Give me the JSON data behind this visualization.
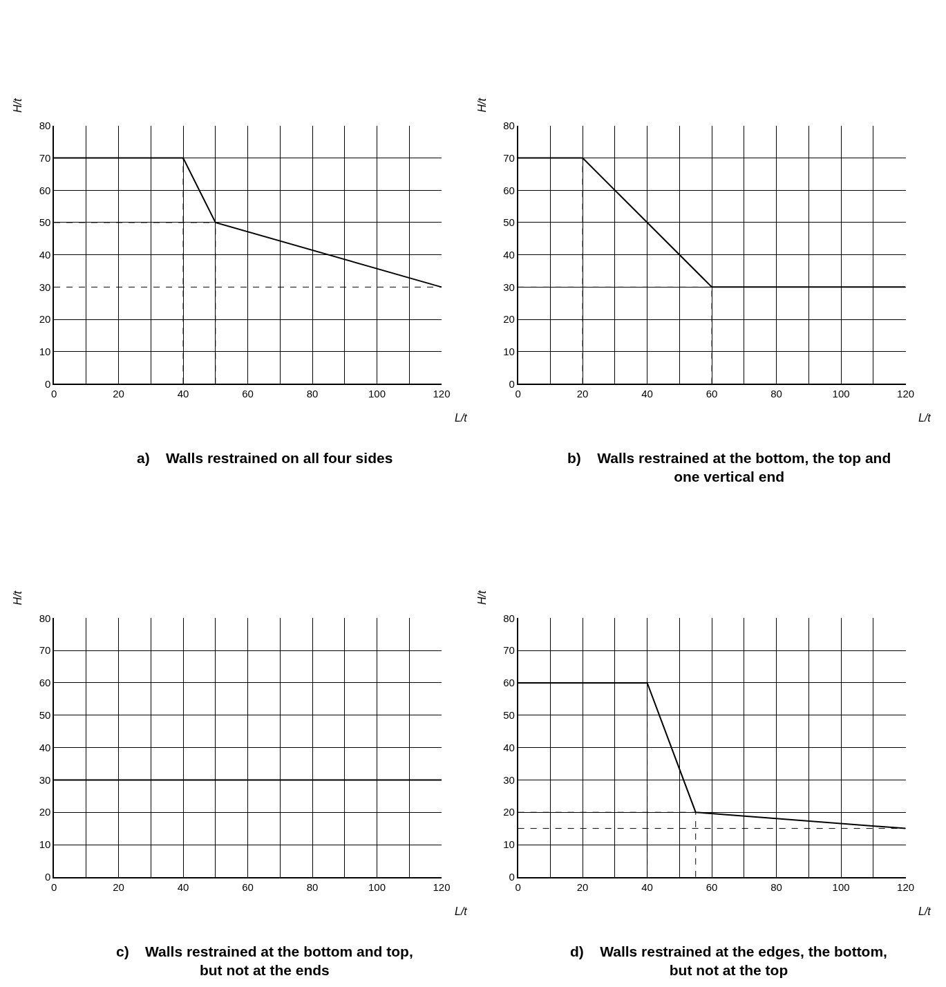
{
  "chart_data": [
    {
      "type": "line",
      "title": "a)    Walls restrained on all four sides",
      "ref_lines": [
        {
          "axis": "y",
          "value": 30,
          "color": "#000000",
          "line_style": "dashed"
        }
      ],
      "xlabel": "L/t",
      "ylabel": "H/t",
      "xlim": [
        0,
        120
      ],
      "ylim": [
        0,
        80
      ],
      "grid": true,
      "xticks": [
        0,
        {
          "value": 10,
          "label": null
        },
        20,
        {
          "value": 30,
          "label": null
        },
        40,
        {
          "value": 50,
          "label": null
        },
        60,
        {
          "value": 70,
          "label": null
        },
        80,
        {
          "value": 90,
          "label": null
        },
        100,
        {
          "value": 110,
          "label": null
        },
        120
      ],
      "yticks": [
        0,
        10,
        20,
        30,
        40,
        50,
        60,
        70,
        80
      ],
      "series": [
        {
          "color": "#000000",
          "line_style": "solid",
          "x": [
            0,
            40,
            50,
            120
          ],
          "values": [
            70,
            70,
            50,
            30
          ]
        },
        {
          "color": "#000000",
          "line_style": "dashed",
          "x": [
            0,
            50
          ],
          "values": [
            50,
            50
          ]
        },
        {
          "color": "#000000",
          "line_style": "dashed",
          "x": [
            40,
            40
          ],
          "values": [
            0,
            70
          ]
        },
        {
          "color": "#000000",
          "line_style": "dashed",
          "x": [
            50,
            50
          ],
          "values": [
            0,
            50
          ]
        }
      ]
    },
    {
      "type": "line",
      "title": "b)    Walls restrained at the bottom, the top and\none vertical end",
      "xlabel": "L/t",
      "ylabel": "H/t",
      "xlim": [
        0,
        120
      ],
      "ylim": [
        0,
        80
      ],
      "grid": true,
      "xticks": [
        0,
        {
          "value": 10,
          "label": null
        },
        20,
        {
          "value": 30,
          "label": null
        },
        40,
        {
          "value": 50,
          "label": null
        },
        60,
        {
          "value": 70,
          "label": null
        },
        80,
        {
          "value": 90,
          "label": null
        },
        100,
        {
          "value": 110,
          "label": null
        },
        120
      ],
      "yticks": [
        0,
        10,
        20,
        30,
        40,
        50,
        60,
        70,
        80
      ],
      "series": [
        {
          "color": "#000000",
          "line_style": "solid",
          "x": [
            0,
            20,
            60,
            120
          ],
          "values": [
            70,
            70,
            30,
            30
          ]
        },
        {
          "color": "#000000",
          "line_style": "dashed",
          "x": [
            0,
            60
          ],
          "values": [
            30,
            30
          ]
        },
        {
          "color": "#000000",
          "line_style": "dashed",
          "x": [
            20,
            20
          ],
          "values": [
            0,
            70
          ]
        },
        {
          "color": "#000000",
          "line_style": "dashed",
          "x": [
            60,
            60
          ],
          "values": [
            0,
            30
          ]
        }
      ]
    },
    {
      "type": "line",
      "title": "c)    Walls restrained at the bottom and top,\nbut not at the ends",
      "xlabel": "L/t",
      "ylabel": "H/t",
      "xlim": [
        0,
        120
      ],
      "ylim": [
        0,
        80
      ],
      "grid": true,
      "xticks": [
        0,
        {
          "value": 10,
          "label": null
        },
        20,
        {
          "value": 30,
          "label": null
        },
        40,
        {
          "value": 50,
          "label": null
        },
        60,
        {
          "value": 70,
          "label": null
        },
        80,
        {
          "value": 90,
          "label": null
        },
        100,
        {
          "value": 110,
          "label": null
        },
        120
      ],
      "yticks": [
        0,
        10,
        20,
        30,
        40,
        50,
        60,
        70,
        80
      ],
      "series": [
        {
          "color": "#000000",
          "line_style": "solid",
          "x": [
            0,
            120
          ],
          "values": [
            30,
            30
          ]
        }
      ]
    },
    {
      "type": "line",
      "title": "d)    Walls restrained at the edges, the bottom,\nbut not at the top",
      "ref_lines": [
        {
          "axis": "y",
          "value": 15,
          "color": "#000000",
          "line_style": "dashed"
        }
      ],
      "xlabel": "L/t",
      "ylabel": "H/t",
      "xlim": [
        0,
        120
      ],
      "ylim": [
        0,
        80
      ],
      "grid": true,
      "xticks": [
        0,
        {
          "value": 10,
          "label": null
        },
        20,
        {
          "value": 30,
          "label": null
        },
        40,
        {
          "value": 50,
          "label": null
        },
        60,
        {
          "value": 70,
          "label": null
        },
        80,
        {
          "value": 90,
          "label": null
        },
        100,
        {
          "value": 110,
          "label": null
        },
        120
      ],
      "yticks": [
        0,
        10,
        20,
        30,
        40,
        50,
        60,
        70,
        80
      ],
      "series": [
        {
          "color": "#000000",
          "line_style": "solid",
          "x": [
            0,
            40,
            55,
            120
          ],
          "values": [
            60,
            60,
            20,
            15
          ]
        },
        {
          "color": "#000000",
          "line_style": "dashed",
          "x": [
            0,
            55
          ],
          "values": [
            20,
            20
          ]
        },
        {
          "color": "#000000",
          "line_style": "dashed",
          "x": [
            40,
            40
          ],
          "values": [
            0,
            60
          ]
        },
        {
          "color": "#000000",
          "line_style": "dashed",
          "x": [
            55,
            55
          ],
          "values": [
            0,
            20
          ]
        }
      ]
    }
  ]
}
